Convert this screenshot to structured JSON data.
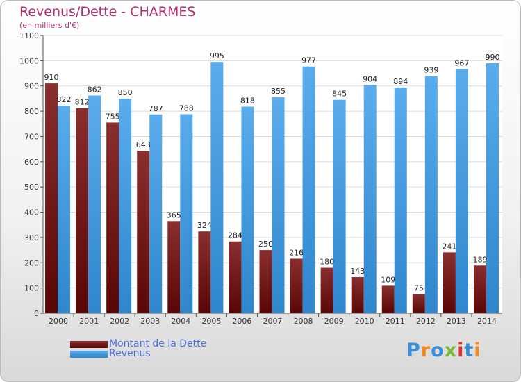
{
  "title": "Revenus/Dette - CHARMES",
  "subtitle": "(en milliers d'€)",
  "logo": {
    "text": "Proxiti",
    "letter_colors": [
      "#3a8fd6",
      "#f08a1c",
      "#3a8fd6",
      "#7ab83a",
      "#e03030",
      "#3a8fd6",
      "#f08a1c"
    ]
  },
  "chart_data": {
    "type": "bar",
    "title": "Revenus/Dette - CHARMES",
    "subtitle": "(en milliers d'€)",
    "categories": [
      "2000",
      "2001",
      "2002",
      "2003",
      "2004",
      "2005",
      "2006",
      "2007",
      "2008",
      "2009",
      "2010",
      "2011",
      "2012",
      "2013",
      "2014"
    ],
    "series": [
      {
        "name": "Montant de la Dette",
        "color": "#7a1818",
        "values": [
          910,
          812,
          755,
          643,
          365,
          324,
          284,
          250,
          216,
          180,
          143,
          109,
          75,
          241,
          189
        ]
      },
      {
        "name": "Revenus",
        "color": "#3d97dc",
        "values": [
          822,
          862,
          850,
          787,
          788,
          995,
          818,
          855,
          977,
          845,
          904,
          894,
          939,
          967,
          990
        ]
      }
    ],
    "ylim": [
      0,
      1100
    ],
    "yticks": [
      0,
      100,
      200,
      300,
      400,
      500,
      600,
      700,
      800,
      900,
      1000,
      1100
    ],
    "grid": true,
    "legend": "bottom-left"
  }
}
